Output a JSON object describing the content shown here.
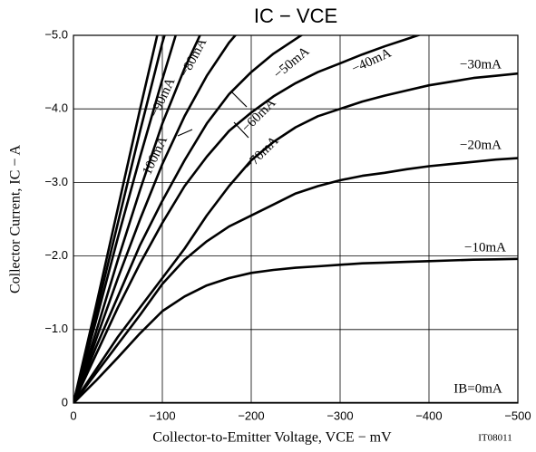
{
  "chart_data": {
    "type": "line",
    "title": "IC − VCE",
    "x_label": "Collector-to-Emitter Voltage, VCE − mV",
    "y_label": "Collector Current, IC − A",
    "note": "IT08011",
    "x": [
      0,
      -25,
      -50,
      -75,
      -100,
      -125,
      -150,
      -175,
      -200,
      -225,
      -250,
      -275,
      -300,
      -325,
      -350,
      -375,
      -400,
      -425,
      -450,
      -475,
      -500
    ],
    "xlim": [
      0,
      -500
    ],
    "ylim": [
      0,
      -5
    ],
    "xticks": [
      0,
      {
        "value": -100,
        "label": "−100"
      },
      {
        "value": -200,
        "label": "−200"
      },
      {
        "value": -300,
        "label": "−300"
      },
      {
        "value": -400,
        "label": "−400"
      },
      {
        "value": -500,
        "label": "−500"
      }
    ],
    "yticks": [
      0,
      {
        "value": -1,
        "label": "−1.0"
      },
      {
        "value": -2,
        "label": "−2.0"
      },
      {
        "value": -3,
        "label": "−3.0"
      },
      {
        "value": -4,
        "label": "−4.0"
      },
      {
        "value": -5,
        "label": "−5.0"
      }
    ],
    "grid": true,
    "series": [
      {
        "name": "IB=0mA",
        "color": "#000000",
        "values": [
          0,
          0,
          0,
          0,
          0,
          0,
          0,
          0,
          0,
          0,
          0,
          0,
          0,
          0,
          0,
          0,
          0,
          0,
          0,
          0,
          0
        ]
      },
      {
        "name": "−10mA",
        "color": "#000000",
        "values": [
          0,
          -0.3,
          -0.62,
          -0.95,
          -1.25,
          -1.45,
          -1.6,
          -1.7,
          -1.77,
          -1.81,
          -1.84,
          -1.86,
          -1.88,
          -1.9,
          -1.91,
          -1.92,
          -1.93,
          -1.94,
          -1.95,
          -1.955,
          -1.96
        ]
      },
      {
        "name": "−20mA",
        "color": "#000000",
        "values": [
          0,
          -0.4,
          -0.8,
          -1.2,
          -1.62,
          -1.95,
          -2.2,
          -2.4,
          -2.55,
          -2.7,
          -2.85,
          -2.95,
          -3.03,
          -3.09,
          -3.13,
          -3.18,
          -3.22,
          -3.25,
          -3.28,
          -3.31,
          -3.33
        ]
      },
      {
        "name": "−30mA",
        "color": "#000000",
        "values": [
          0,
          -0.45,
          -0.9,
          -1.3,
          -1.7,
          -2.1,
          -2.55,
          -2.95,
          -3.3,
          -3.55,
          -3.75,
          -3.9,
          -4.0,
          -4.1,
          -4.18,
          -4.25,
          -4.32,
          -4.37,
          -4.42,
          -4.45,
          -4.48
        ]
      },
      {
        "name": "−40mA",
        "color": "#000000",
        "values": [
          0,
          -0.65,
          -1.3,
          -1.9,
          -2.45,
          -2.95,
          -3.35,
          -3.7,
          -3.95,
          -4.17,
          -4.35,
          -4.5,
          -4.62,
          -4.74,
          -4.85,
          -4.95,
          -5.05,
          null,
          null,
          null,
          null
        ]
      },
      {
        "name": "−50mA",
        "color": "#000000",
        "values": [
          0,
          -0.75,
          -1.45,
          -2.15,
          -2.75,
          -3.3,
          -3.8,
          -4.2,
          -4.5,
          -4.75,
          -4.95,
          -5.15,
          null,
          null,
          null,
          null,
          null,
          null,
          null,
          null,
          null
        ]
      },
      {
        "name": "−60mA",
        "color": "#000000",
        "values": [
          0,
          -0.85,
          -1.7,
          -2.5,
          -3.25,
          -3.9,
          -4.45,
          -4.9,
          -5.25,
          null,
          null,
          null,
          null,
          null,
          null,
          null,
          null,
          null,
          null,
          null,
          null
        ]
      },
      {
        "name": "−70mA",
        "color": "#000000",
        "values": [
          0,
          -0.95,
          -1.95,
          -2.9,
          -3.8,
          -4.55,
          -5.2,
          null,
          null,
          null,
          null,
          null,
          null,
          null,
          null,
          null,
          null,
          null,
          null,
          null,
          null
        ]
      },
      {
        "name": "−80mA",
        "color": "#000000",
        "values": [
          0,
          -1.1,
          -2.25,
          -3.35,
          -4.4,
          -5.4,
          null,
          null,
          null,
          null,
          null,
          null,
          null,
          null,
          null,
          null,
          null,
          null,
          null,
          null,
          null
        ]
      },
      {
        "name": "−90mA",
        "color": "#000000",
        "values": [
          0,
          -1.2,
          -2.45,
          -3.7,
          -4.9,
          -5.9,
          null,
          null,
          null,
          null,
          null,
          null,
          null,
          null,
          null,
          null,
          null,
          null,
          null,
          null,
          null
        ]
      },
      {
        "name": "−100mA",
        "color": "#000000",
        "values": [
          0,
          -1.3,
          -2.65,
          -4.0,
          -5.3,
          null,
          null,
          null,
          null,
          null,
          null,
          null,
          null,
          null,
          null,
          null,
          null,
          null,
          null,
          null,
          null
        ]
      }
    ]
  }
}
